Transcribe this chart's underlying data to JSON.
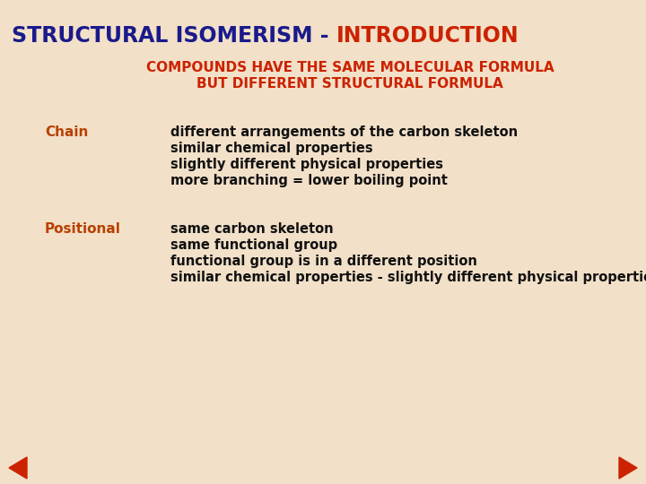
{
  "background_color": "#f2e0c8",
  "title_part1": "STRUCTURAL ISOMERISM - ",
  "title_part2": "INTRODUCTION",
  "title_color1": "#1a1a8c",
  "title_color2": "#cc2200",
  "title_fontsize": 17,
  "subtitle_line1": "COMPOUNDS HAVE THE SAME MOLECULAR FORMULA",
  "subtitle_line2": "BUT DIFFERENT STRUCTURAL FORMULA",
  "subtitle_color": "#cc2200",
  "subtitle_fontsize": 11,
  "label_color": "#b84000",
  "label_fontsize": 11,
  "body_color": "#111111",
  "body_fontsize": 10.5,
  "chain_label": "Chain",
  "chain_bullets": [
    "different arrangements of the carbon skeleton",
    "similar chemical properties",
    "slightly different physical properties",
    "more branching = lower boiling point"
  ],
  "positional_label": "Positional",
  "positional_bullets": [
    "same carbon skeleton",
    "same functional group",
    "functional group is in a different position",
    "similar chemical properties - slightly different physical properties"
  ],
  "arrow_color": "#cc2200",
  "font_family": "DejaVu Sans"
}
